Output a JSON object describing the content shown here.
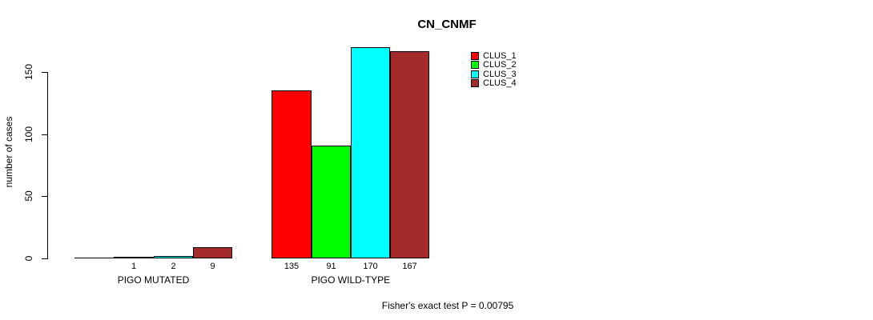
{
  "chart_data": {
    "type": "bar",
    "title": "CN_CNMF",
    "ylabel": "number of cases",
    "xlabel": "",
    "categories": [
      "PIGO MUTATED",
      "PIGO WILD-TYPE"
    ],
    "series": [
      {
        "name": "CLUS_1",
        "color": "#FF0000",
        "values": [
          0,
          135
        ]
      },
      {
        "name": "CLUS_2",
        "color": "#00FF00",
        "values": [
          1,
          91
        ]
      },
      {
        "name": "CLUS_3",
        "color": "#00FFFF",
        "values": [
          2,
          170
        ]
      },
      {
        "name": "CLUS_4",
        "color": "#A52A2A",
        "values": [
          9,
          167
        ]
      }
    ],
    "bar_value_labels": [
      [
        "",
        "1",
        "2",
        "9"
      ],
      [
        "135",
        "91",
        "170",
        "167"
      ]
    ],
    "yticks": [
      0,
      50,
      100,
      150
    ],
    "ylim": [
      0,
      172
    ],
    "grid": false,
    "legend_position": "top-right-inside",
    "legend_entries": [
      "CLUS_1",
      "CLUS_2",
      "CLUS_3",
      "CLUS_4"
    ],
    "annotation": "Fisher's exact test P = 0.00795",
    "axis_color": "#000000",
    "bar_border_color": "#000000"
  }
}
